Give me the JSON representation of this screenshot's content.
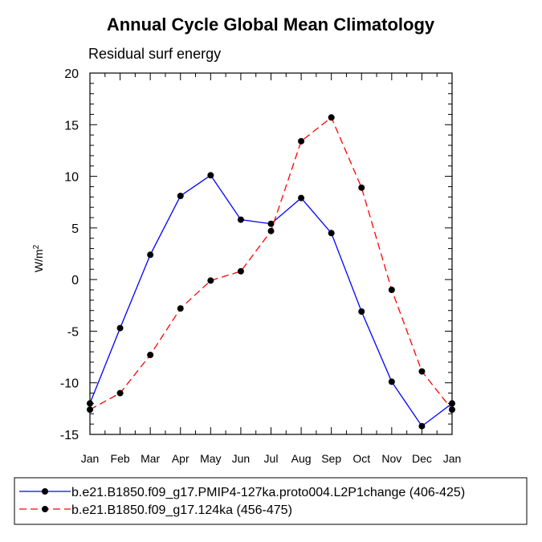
{
  "chart_data": {
    "type": "line",
    "title": "Annual Cycle Global Mean Climatology",
    "subtitle": "Residual surf energy",
    "xlabel": "",
    "ylabel": "W/m",
    "ylabel_sup": "2",
    "categories": [
      "Jan",
      "Feb",
      "Mar",
      "Apr",
      "May",
      "Jun",
      "Jul",
      "Aug",
      "Sep",
      "Oct",
      "Nov",
      "Dec",
      "Jan"
    ],
    "yticks": [
      -15,
      -10,
      -5,
      0,
      5,
      10,
      15,
      20
    ],
    "ylim": [
      -15,
      20
    ],
    "series": [
      {
        "name": "b.e21.B1850.f09_g17.PMIP4-127ka.proto004.L2P1change (406-425)",
        "color": "#0000ff",
        "dash": "solid",
        "values": [
          -12.0,
          -4.7,
          2.4,
          8.1,
          10.1,
          5.8,
          5.4,
          7.9,
          4.5,
          -3.1,
          -9.9,
          -14.2,
          -12.0
        ]
      },
      {
        "name": "b.e21.B1850.f09_g17.124ka (456-475)",
        "color": "#ff0000",
        "dash": "dashed",
        "values": [
          -12.6,
          -11.0,
          -7.3,
          -2.8,
          -0.1,
          0.8,
          4.7,
          13.4,
          15.7,
          8.9,
          -1.0,
          -8.9,
          -12.6
        ]
      }
    ],
    "legend_position": "bottom"
  }
}
